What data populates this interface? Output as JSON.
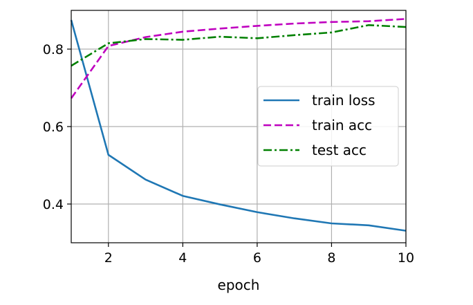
{
  "chart_data": {
    "type": "line",
    "title": "",
    "xlabel": "epoch",
    "ylabel": "",
    "xlim": [
      1,
      10
    ],
    "ylim": [
      0.3,
      0.9
    ],
    "xticks": [
      2,
      4,
      6,
      8,
      10
    ],
    "yticks": [
      0.4,
      0.6,
      0.8
    ],
    "grid": true,
    "legend_position": "center-right",
    "x": [
      1,
      2,
      3,
      4,
      5,
      6,
      7,
      8,
      9,
      10
    ],
    "series": [
      {
        "name": "train loss",
        "color": "#1f77b4",
        "style": "solid",
        "values": [
          0.875,
          0.527,
          0.463,
          0.421,
          0.399,
          0.379,
          0.363,
          0.35,
          0.345,
          0.331
        ]
      },
      {
        "name": "train acc",
        "color": "#bf00bf",
        "style": "dashed",
        "values": [
          0.673,
          0.808,
          0.831,
          0.845,
          0.853,
          0.86,
          0.866,
          0.87,
          0.872,
          0.878
        ]
      },
      {
        "name": "test acc",
        "color": "#008000",
        "style": "dashdot",
        "values": [
          0.757,
          0.815,
          0.826,
          0.824,
          0.832,
          0.828,
          0.836,
          0.843,
          0.862,
          0.857
        ]
      }
    ]
  }
}
